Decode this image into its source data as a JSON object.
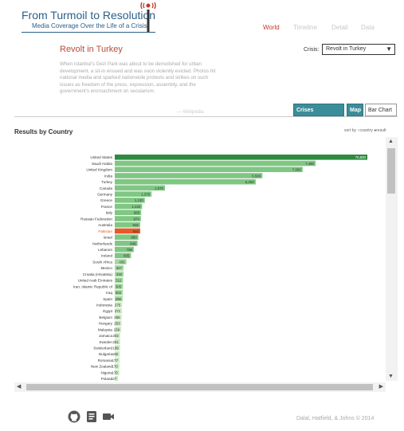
{
  "header": {
    "title": "From Turmoil to Resolution",
    "subtitle": "Media Coverage Over the Life of a Crisis"
  },
  "nav": [
    "World",
    "Timeline",
    "Detail",
    "Data"
  ],
  "crisis": {
    "title": "Revolt in Turkey",
    "description": "When Istanbul's Gezi Park was about to be demolished for urban development, a sit-in ensued and was soon violently evicted. Photos hit national media and sparked nationwide protests and strikes on such issues as freedom of the press, expression, assembly, and the government's encroachment on secularism.",
    "source": "— Wikipedia",
    "selector_label": "Crisis:",
    "selected": "Revolt in Turkey"
  },
  "views": [
    "Crises Compared",
    "Map",
    "Bar Chart"
  ],
  "results_heading": "Results by Country",
  "sort": {
    "label": "sort by",
    "options": [
      "country",
      "result"
    ]
  },
  "footer": {
    "credit": "Dalal, Hatfield, & Johns © 2014"
  },
  "colors": {
    "top": "#2e8b3d",
    "high": "#7fc783",
    "mid": "#a6d9a2",
    "low": "#cdeac4",
    "highlight": "#e8592a"
  },
  "chart_data": {
    "type": "bar",
    "orientation": "horizontal",
    "categories": [
      "United States",
      "Saudi Arabia",
      "United Kingdom",
      "India",
      "Turkey",
      "Canada",
      "Germany",
      "Greece",
      "France",
      "Italy",
      "Russian Federation",
      "Australia",
      "Pakistan",
      "Israel",
      "Netherlands",
      "Lebanon",
      "Ireland",
      "South Africa",
      "Mexico",
      "Croatia (Hrvatska)",
      "United Arab Emirates",
      "Iran, Islamic Republic of",
      "Iraq",
      "Spain",
      "Indonesia",
      "Egypt",
      "Belgium",
      "Hungary",
      "Malaysia",
      "Jamaica",
      "Sweden",
      "Switzerland",
      "Bulgaria",
      "Romania",
      "New Zealand",
      "Nigeria",
      "Poland",
      "Albania"
    ],
    "values": [
      70800,
      7480,
      7000,
      5500,
      5250,
      1870,
      1370,
      1120,
      1020,
      985,
      974,
      946,
      950,
      880,
      848,
      708,
      605,
      436,
      327,
      330,
      312,
      305,
      302,
      296,
      275,
      271,
      255,
      253,
      239,
      202,
      201,
      199,
      182,
      177,
      170,
      170,
      127,
      143
    ],
    "labels": [
      "70,800",
      "7,480",
      "7,000",
      "5,500",
      "5,250",
      "1,870",
      "1,370",
      "1,120",
      "1,020",
      "985",
      "974",
      "946",
      "950",
      "880",
      "848",
      "708",
      "605",
      "436",
      "327",
      "330",
      "312",
      "305",
      "302",
      "296",
      "275",
      "271",
      "255",
      "253",
      "239",
      "202",
      "201",
      "199",
      "182",
      "177",
      "170",
      "170",
      "127",
      "143"
    ],
    "highlight": "Pakistan"
  }
}
